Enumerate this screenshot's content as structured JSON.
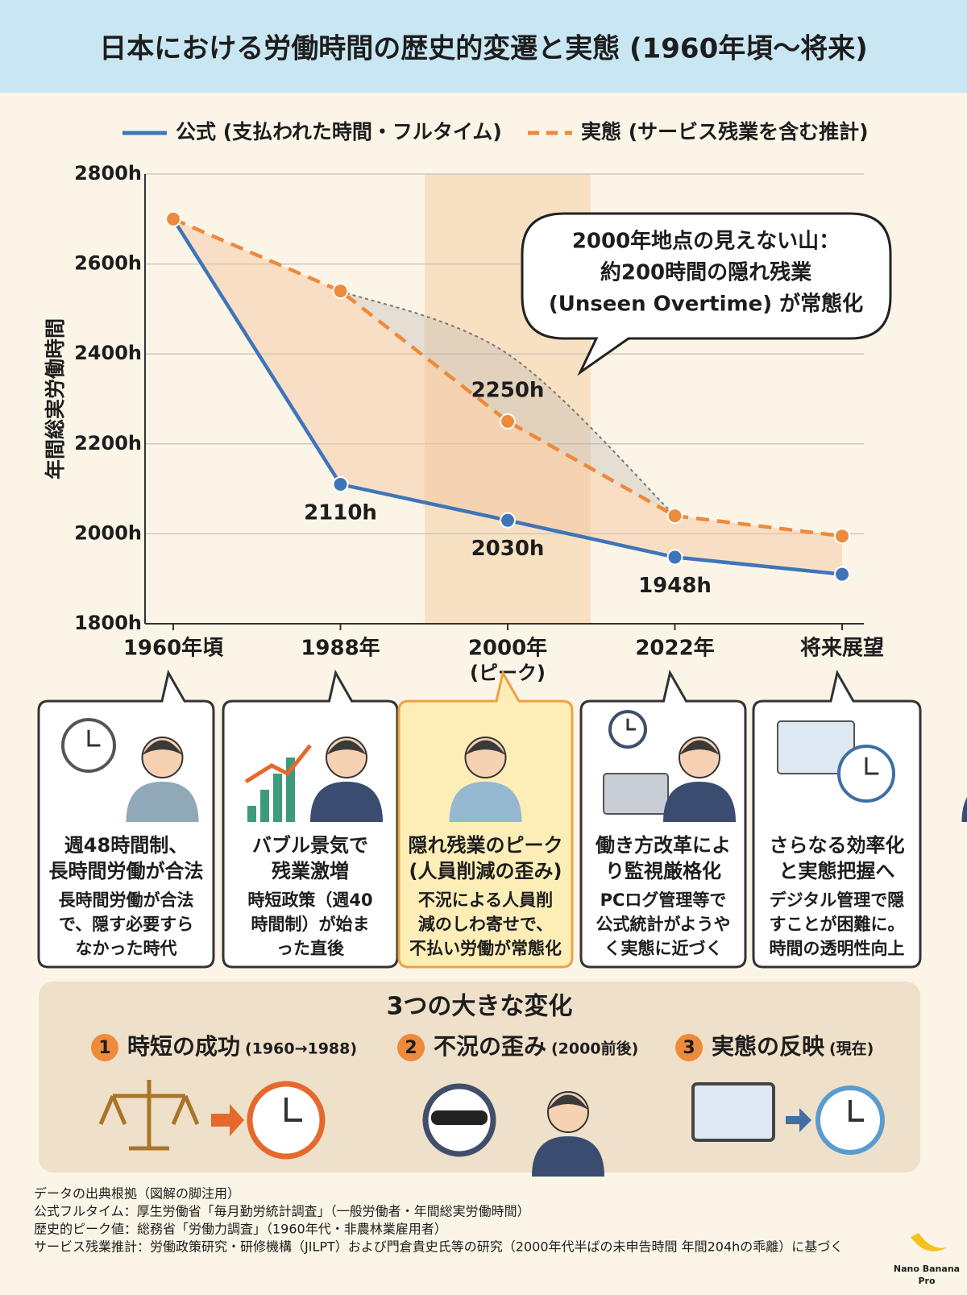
{
  "title": "日本における労働時間の歴史的変遷と実態 (1960年頃〜将来)",
  "chart_data": {
    "type": "line",
    "y_label": "年間総実労働時間",
    "categories": [
      "1960年頃",
      "1988年",
      "2000年",
      "2022年",
      "将来展望"
    ],
    "category_notes": [
      null,
      null,
      "(ピーク)",
      null,
      null
    ],
    "highlight_category": 2,
    "series": [
      {
        "name": "公式 (支払われた時間・フルタイム)",
        "color": "#3f74b8",
        "style": "solid",
        "values": [
          2700,
          2110,
          2030,
          1948,
          1910
        ],
        "value_labels": [
          null,
          "2110h",
          "2030h",
          "1948h",
          null
        ]
      },
      {
        "name": "実態 (サービス残業を含む推計)",
        "color": "#ee8a3c",
        "style": "dashed",
        "values": [
          2700,
          2540,
          2250,
          2040,
          1995
        ],
        "value_labels": [
          null,
          null,
          "2250h",
          null,
          null
        ]
      }
    ],
    "annotation_curve": {
      "color": "#777777",
      "values": [
        null,
        2540,
        2400,
        2040,
        null
      ]
    },
    "annotation": [
      "2000年地点の見えない山：",
      "約200時間の隠れ残業",
      "(Unseen Overtime) が常態化"
    ],
    "ylim": [
      1800,
      2800
    ],
    "yticks": [
      {
        "value": 1800,
        "label": "1800h"
      },
      {
        "value": 2000,
        "label": "2000h"
      },
      {
        "value": 2200,
        "label": "2200h"
      },
      {
        "value": 2400,
        "label": "2400h"
      },
      {
        "value": 2600,
        "label": "2600h"
      },
      {
        "value": 2800,
        "label": "2800h"
      }
    ],
    "grid": true
  },
  "cards": [
    {
      "title": [
        "週48時間制、",
        "長時間労働が合法"
      ],
      "body": [
        "長時間労働が合法",
        "で、隠す必要すら",
        "なかった時代"
      ]
    },
    {
      "title": [
        "バブル景気で",
        "残業激増"
      ],
      "body": [
        "時短政策（週40",
        "時間制）が始ま",
        "った直後"
      ]
    },
    {
      "title": [
        "隠れ残業のピーク",
        "(人員削減の歪み)"
      ],
      "body": [
        "不況による人員削",
        "減のしわ寄せで、",
        "不払い労働が常態化"
      ]
    },
    {
      "title": [
        "働き方改革によ",
        "り監視厳格化"
      ],
      "body": [
        "PCログ管理等で",
        "公式統計がようや",
        "く実態に近づく"
      ]
    },
    {
      "title": [
        "さらなる効率化",
        "と実態把握へ"
      ],
      "body": [
        "デジタル管理で隠",
        "すことが困難に。",
        "時間の透明性向上"
      ]
    }
  ],
  "changes": {
    "title": "3つの大きな変化",
    "items": [
      {
        "number": 1,
        "title": "時短の成功",
        "period": "(1960→1988)"
      },
      {
        "number": 2,
        "title": "不況の歪み",
        "period": "(2000前後)"
      },
      {
        "number": 3,
        "title": "実態の反映",
        "period": "(現在)"
      }
    ]
  },
  "footnotes": [
    "データの出典根拠（図解の脚注用）",
    "公式フルタイム：厚生労働省「毎月勤労統計調査」（一般労働者・年間総実労働時間）",
    "歴史的ピーク値：総務省「労働力調査」（1960年代・非農林業雇用者）",
    "サービス残業推計：労働政策研究・研修機構（JILPT）および門倉貴史氏等の研究（2000年代半ばの未申告時間 年間204hの乖離）に基づく"
  ],
  "watermark": [
    "Nano Banana",
    "Pro"
  ]
}
